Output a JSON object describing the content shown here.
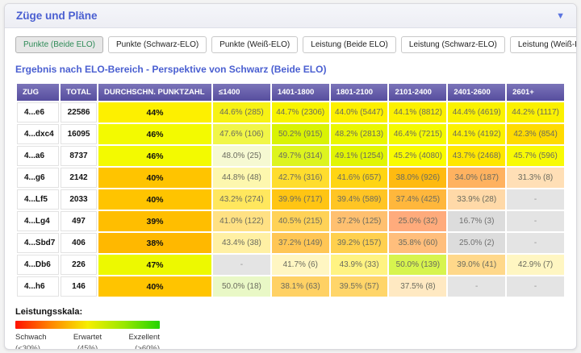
{
  "panel": {
    "title": "Züge und Pläne",
    "collapse_icon": "▼"
  },
  "tabs": [
    {
      "label": "Punkte (Beide ELO)",
      "active": true
    },
    {
      "label": "Punkte (Schwarz-ELO)",
      "active": false
    },
    {
      "label": "Punkte (Weiß-ELO)",
      "active": false
    },
    {
      "label": "Leistung (Beide ELO)",
      "active": false
    },
    {
      "label": "Leistung (Schwarz-ELO)",
      "active": false
    },
    {
      "label": "Leistung (Weiß-ELO)",
      "active": false
    }
  ],
  "subtitle": "Ergebnis nach ELO-Bereich - Perspektive von Schwarz (Beide ELO)",
  "colors": {
    "accent_blue": "#4a5fd1",
    "active_tab_green": "#2e8b57",
    "header_gradient_top": "#7b74b9",
    "header_gradient_bottom": "#564d9e",
    "empty_cell": "#e4e4e4",
    "empty_cell_text": "#909090"
  },
  "table": {
    "headers": [
      "ZUG",
      "TOTAL",
      "DURCHSCHN. PUNKTZAHL",
      "≤1400",
      "1401-1800",
      "1801-2100",
      "2101-2400",
      "2401-2600",
      "2601+"
    ],
    "rows": [
      {
        "zug": "4...e6",
        "total": "22586",
        "avg": "44%",
        "avg_bg": "#fdf000",
        "cells": [
          {
            "t": "44.6% (285)",
            "bg": "#f7f214"
          },
          {
            "t": "44.7% (2306)",
            "bg": "#f8f400"
          },
          {
            "t": "44.0% (5447)",
            "bg": "#fdf000"
          },
          {
            "t": "44.1% (8812)",
            "bg": "#fcf100"
          },
          {
            "t": "44.4% (4619)",
            "bg": "#faf200"
          },
          {
            "t": "44.2% (1117)",
            "bg": "#fbf100"
          }
        ]
      },
      {
        "zug": "4...dxc4",
        "total": "16095",
        "avg": "46%",
        "avg_bg": "#f3fa00",
        "cells": [
          {
            "t": "47.6% (106)",
            "bg": "#f1f648"
          },
          {
            "t": "50.2% (915)",
            "bg": "#d9f303"
          },
          {
            "t": "48.2% (2813)",
            "bg": "#eaf700"
          },
          {
            "t": "46.4% (7215)",
            "bg": "#f4fa00"
          },
          {
            "t": "44.1% (4192)",
            "bg": "#fcf100"
          },
          {
            "t": "42.3% (854)",
            "bg": "#ffdb00"
          }
        ]
      },
      {
        "zug": "4...a6",
        "total": "8737",
        "avg": "46%",
        "avg_bg": "#f3fa00",
        "cells": [
          {
            "t": "48.0% (25)",
            "bg": "#f6f9d2"
          },
          {
            "t": "49.7% (314)",
            "bg": "#ddf41f"
          },
          {
            "t": "49.1% (1254)",
            "bg": "#e1f503"
          },
          {
            "t": "45.2% (4080)",
            "bg": "#f9fb00"
          },
          {
            "t": "43.7% (2468)",
            "bg": "#ffe700"
          },
          {
            "t": "45.7% (596)",
            "bg": "#f8fa05"
          }
        ]
      },
      {
        "zug": "4...g6",
        "total": "2142",
        "avg": "40%",
        "avg_bg": "#ffc400",
        "cells": [
          {
            "t": "44.8% (48)",
            "bg": "#fdf7ae"
          },
          {
            "t": "42.7% (316)",
            "bg": "#ffdd2e"
          },
          {
            "t": "41.6% (657)",
            "bg": "#ffd513"
          },
          {
            "t": "38.0% (926)",
            "bg": "#ffba10"
          },
          {
            "t": "34.0% (187)",
            "bg": "#ffb260"
          },
          {
            "t": "31.3% (8)",
            "bg": "#ffdfb6"
          }
        ]
      },
      {
        "zug": "4...Lf5",
        "total": "2033",
        "avg": "40%",
        "avg_bg": "#ffc400",
        "cells": [
          {
            "t": "43.2% (274)",
            "bg": "#ffe75e"
          },
          {
            "t": "39.9% (717)",
            "bg": "#ffc513"
          },
          {
            "t": "39.4% (589)",
            "bg": "#ffc524"
          },
          {
            "t": "37.4% (425)",
            "bg": "#ffb73c"
          },
          {
            "t": "33.9% (28)",
            "bg": "#ffd9a8"
          },
          {
            "t": "-",
            "bg": "#e4e4e4",
            "fg": "#909090"
          }
        ]
      },
      {
        "zug": "4...Lg4",
        "total": "497",
        "avg": "39%",
        "avg_bg": "#ffbe00",
        "cells": [
          {
            "t": "41.0% (122)",
            "bg": "#ffe184"
          },
          {
            "t": "40.5% (215)",
            "bg": "#ffd257"
          },
          {
            "t": "37.2% (125)",
            "bg": "#ffc070"
          },
          {
            "t": "25.0% (32)",
            "bg": "#ffab7c"
          },
          {
            "t": "16.7% (3)",
            "bg": "#dcdcdc",
            "fg": "#6f6f6f"
          },
          {
            "t": "-",
            "bg": "#e4e4e4",
            "fg": "#909090"
          }
        ]
      },
      {
        "zug": "4...Sbd7",
        "total": "406",
        "avg": "38%",
        "avg_bg": "#ffb800",
        "cells": [
          {
            "t": "43.4% (38)",
            "bg": "#fff0a4"
          },
          {
            "t": "37.2% (149)",
            "bg": "#ffc655"
          },
          {
            "t": "39.2% (157)",
            "bg": "#ffd04e"
          },
          {
            "t": "35.8% (60)",
            "bg": "#ffbe7c"
          },
          {
            "t": "25.0% (2)",
            "bg": "#dcdcdc",
            "fg": "#6f6f6f"
          },
          {
            "t": "-",
            "bg": "#e4e4e4",
            "fg": "#909090"
          }
        ]
      },
      {
        "zug": "4...Db6",
        "total": "226",
        "avg": "47%",
        "avg_bg": "#edf900",
        "cells": [
          {
            "t": "-",
            "bg": "#e4e4e4",
            "fg": "#909090"
          },
          {
            "t": "41.7% (6)",
            "bg": "#fff6c2"
          },
          {
            "t": "43.9% (33)",
            "bg": "#fff382"
          },
          {
            "t": "50.0% (139)",
            "bg": "#d7f44e"
          },
          {
            "t": "39.0% (41)",
            "bg": "#ffd88a"
          },
          {
            "t": "42.9% (7)",
            "bg": "#fff6c2"
          }
        ]
      },
      {
        "zug": "4...h6",
        "total": "146",
        "avg": "40%",
        "avg_bg": "#ffc400",
        "cells": [
          {
            "t": "50.0% (18)",
            "bg": "#e9f8c6"
          },
          {
            "t": "38.1% (63)",
            "bg": "#ffd164"
          },
          {
            "t": "39.5% (57)",
            "bg": "#ffd569"
          },
          {
            "t": "37.5% (8)",
            "bg": "#ffe9c2"
          },
          {
            "t": "-",
            "bg": "#e4e4e4",
            "fg": "#909090"
          },
          {
            "t": "-",
            "bg": "#e4e4e4",
            "fg": "#909090"
          }
        ]
      }
    ]
  },
  "legend": {
    "title": "Leistungsskala:",
    "gradient": [
      "#ff1100",
      "#ff8800",
      "#f6ee00",
      "#9be800",
      "#22d400"
    ],
    "labels": [
      {
        "name": "Schwach",
        "range": "(<30%)"
      },
      {
        "name": "Erwartet",
        "range": "(45%)"
      },
      {
        "name": "Exzellent",
        "range": "(>60%)"
      }
    ]
  }
}
